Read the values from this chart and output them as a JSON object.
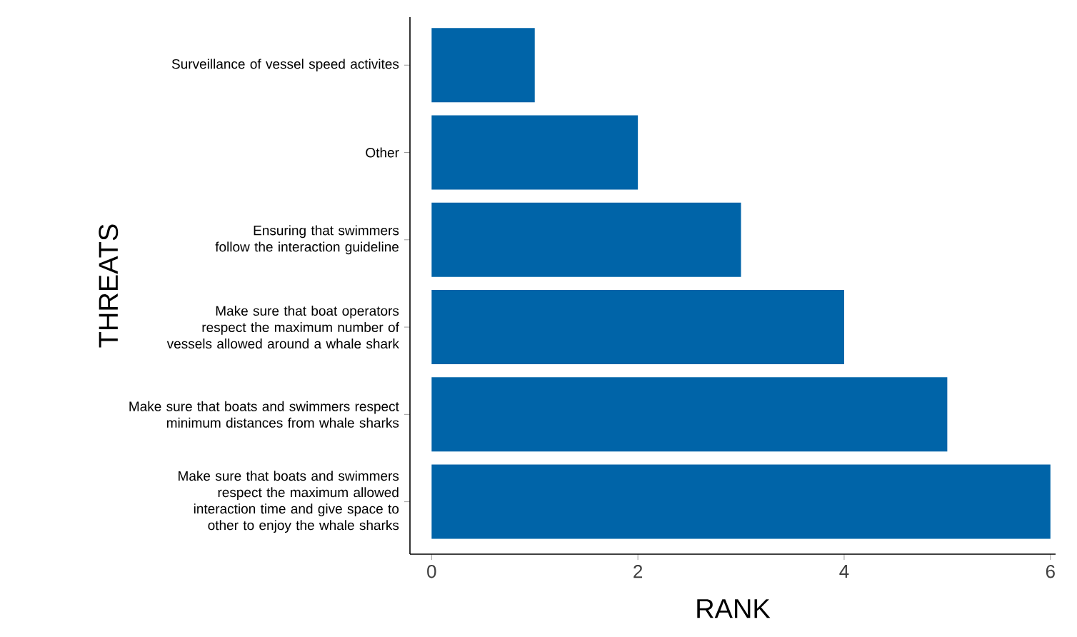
{
  "chart_data": {
    "type": "bar",
    "orientation": "horizontal",
    "xlabel": "RANK",
    "ylabel": "THREATS",
    "categories": [
      "Surveillance of vessel speed activites",
      "Other",
      "Ensuring that swimmers follow the interaction guideline",
      "Make sure that boat operators respect the maximum number of vessels allowed around a whale shark",
      "Make sure that boats and swimmers respect minimum distances from whale sharks",
      "Make sure that boats and swimmers respect the maximum allowed interaction time and give space to other to enjoy the whale sharks"
    ],
    "values": [
      1,
      2,
      3,
      4,
      5,
      6
    ],
    "color": "#0064a8",
    "xlim": [
      -0.21,
      6.05
    ],
    "xticks": [
      0,
      2,
      4,
      6
    ]
  }
}
